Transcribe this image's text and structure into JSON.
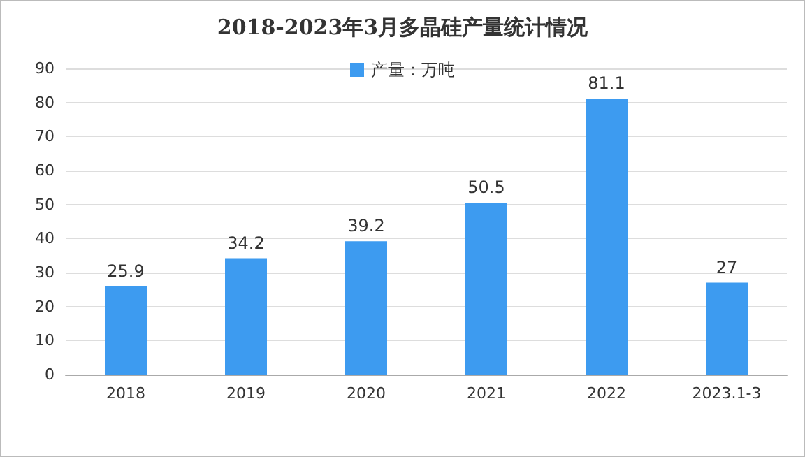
{
  "chart_data": {
    "type": "bar",
    "title": "2018-2023年3月多晶硅产量统计情况",
    "categories": [
      "2018",
      "2019",
      "2020",
      "2021",
      "2022",
      "2023.1-3"
    ],
    "series": [
      {
        "name": "产量：万吨",
        "color": "#3d9bf0",
        "values": [
          25.9,
          34.2,
          39.2,
          50.5,
          81.1,
          27
        ]
      }
    ],
    "ylim": [
      0,
      90
    ],
    "yticks": [
      0,
      10,
      20,
      30,
      40,
      50,
      60,
      70,
      80,
      90
    ],
    "grid": "y",
    "legend": "top",
    "data_labels": true
  }
}
